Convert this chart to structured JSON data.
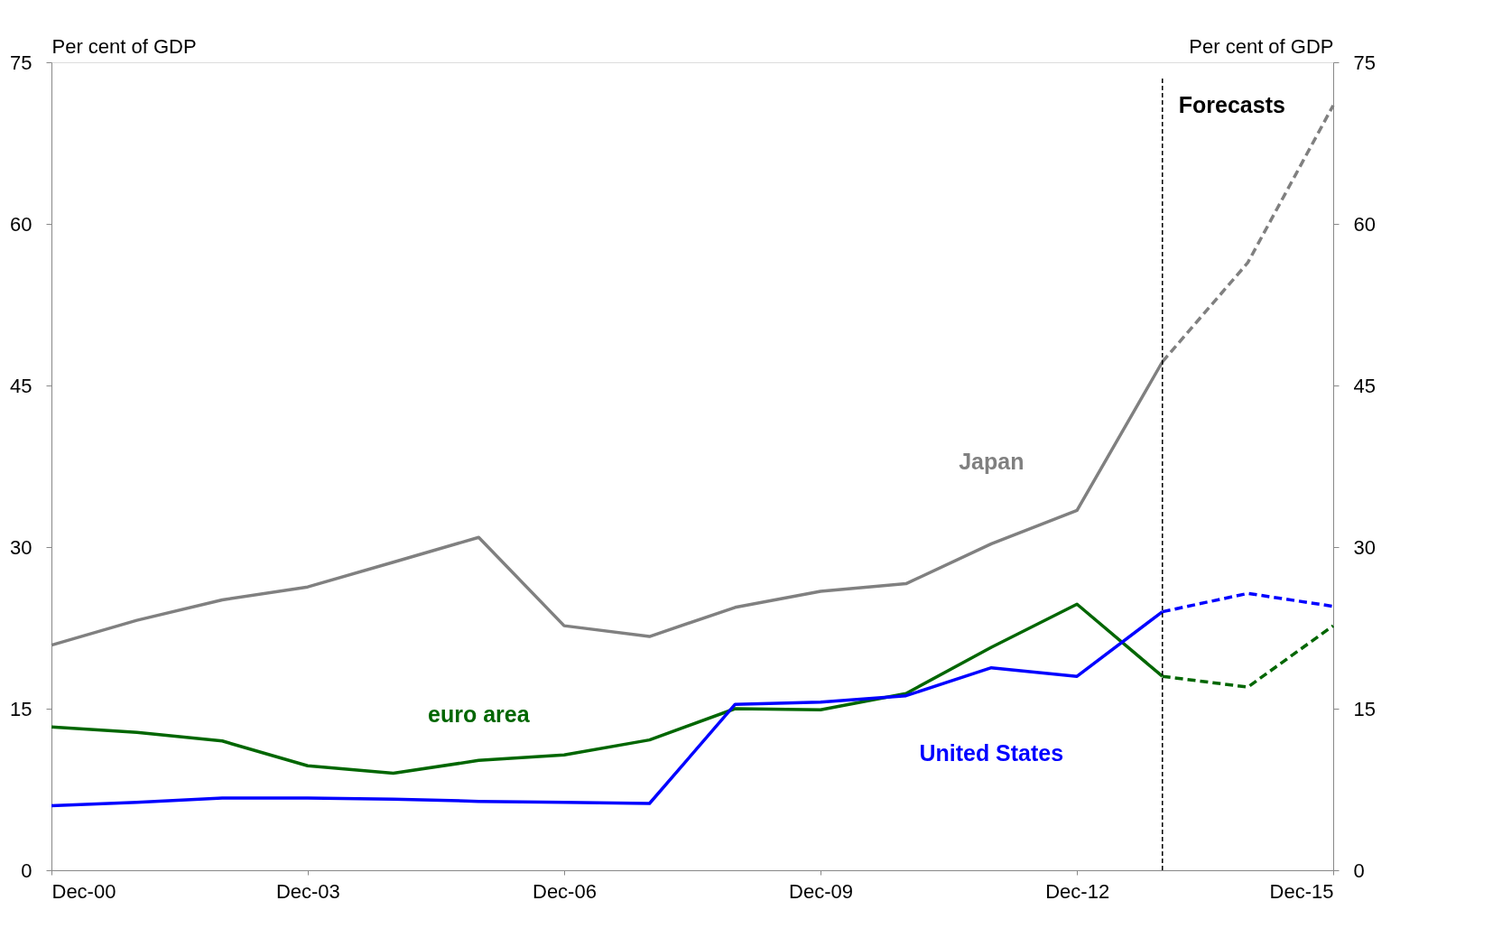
{
  "chart_data": {
    "type": "line",
    "ylabel": "Per cent of GDP",
    "y2label": "Per cent of GDP",
    "x": [
      "2000-12",
      "2001-12",
      "2002-12",
      "2003-12",
      "2004-12",
      "2005-12",
      "2006-12",
      "2007-12",
      "2008-12",
      "2009-12",
      "2010-12",
      "2011-12",
      "2012-12",
      "2013-12"
    ],
    "series": [
      {
        "name": "Japan",
        "color": "#808080",
        "line_style": "solid",
        "values": [
          20.9,
          23.2,
          25.1,
          26.3,
          28.6,
          30.9,
          22.7,
          21.7,
          24.4,
          25.9,
          26.6,
          30.3,
          33.4,
          47.2
        ]
      },
      {
        "name": "euro area",
        "color": "#006600",
        "line_style": "solid",
        "values": [
          13.3,
          12.8,
          12.0,
          9.7,
          9.0,
          10.2,
          10.7,
          12.1,
          15.0,
          14.9,
          16.4,
          20.7,
          24.7,
          18.0
        ]
      },
      {
        "name": "United States",
        "color": "#0000ff",
        "line_style": "solid",
        "values": [
          6.0,
          6.3,
          6.7,
          6.7,
          6.6,
          6.4,
          6.3,
          6.2,
          15.4,
          15.6,
          16.2,
          18.8,
          18.0,
          24.0
        ]
      },
      {
        "color": "#808080",
        "line_style": "dashed",
        "x": [
          "2013-12",
          "2014-12",
          "2015-12"
        ],
        "values": [
          47.2,
          56.4,
          71.0
        ]
      },
      {
        "color": "#006600",
        "line_style": "dashed",
        "x": [
          "2013-12",
          "2014-12",
          "2015-12"
        ],
        "values": [
          18.0,
          17.0,
          22.7
        ]
      },
      {
        "color": "#0000ff",
        "line_style": "dashed",
        "x": [
          "2013-12",
          "2014-12",
          "2015-12"
        ],
        "values": [
          24.0,
          25.7,
          24.5
        ]
      }
    ],
    "ref_lines": [
      {
        "axis": "x",
        "value": "2013-12",
        "label": "Forecasts",
        "color": "#000000",
        "line_style": "dashed"
      }
    ],
    "xlim": [
      "2000-12",
      "2015-12"
    ],
    "xticks": [
      {
        "value": "2000-12",
        "label": "Dec-00"
      },
      {
        "value": "2003-12",
        "label": "Dec-03"
      },
      {
        "value": "2006-12",
        "label": "Dec-06"
      },
      {
        "value": "2009-12",
        "label": "Dec-09"
      },
      {
        "value": "2012-12",
        "label": "Dec-12"
      },
      {
        "value": "2015-12",
        "label": "Dec-15"
      }
    ],
    "ylim": [
      0,
      75
    ],
    "yticks": [
      0,
      15,
      30,
      45,
      60,
      75
    ],
    "y2lim": [
      0,
      75
    ],
    "y2ticks": [
      0,
      15,
      30,
      45,
      60,
      75
    ],
    "grid": false
  }
}
